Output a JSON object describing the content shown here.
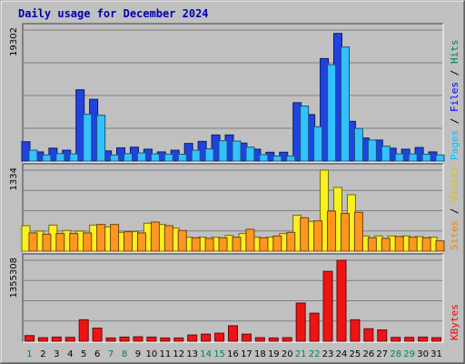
{
  "chart_data": {
    "title": "Daily usage for December 2024",
    "days": [
      "1",
      "2",
      "3",
      "4",
      "5",
      "6",
      "7",
      "8",
      "9",
      "10",
      "11",
      "12",
      "13",
      "14",
      "15",
      "16",
      "17",
      "18",
      "19",
      "20",
      "21",
      "22",
      "23",
      "24",
      "25",
      "26",
      "27",
      "28",
      "29",
      "30",
      "31"
    ],
    "weekend_days": [
      "1",
      "7",
      "8",
      "14",
      "15",
      "21",
      "22",
      "28",
      "29"
    ],
    "panels": [
      {
        "name": "pages-files-hits",
        "ymax_label": "19302",
        "ymax": 19302,
        "legend": [
          {
            "text": "Hits",
            "color": "#00805c"
          },
          {
            "text": "Files",
            "color": "#0000ff"
          },
          {
            "text": "Pages",
            "color": "#00c0ff"
          }
        ],
        "series": [
          {
            "name": "Hits",
            "color": "#1f43e0",
            "values": [
              2850,
              1350,
              1900,
              1600,
              10500,
              9100,
              1500,
              1950,
              2050,
              1750,
              1350,
              1600,
              2600,
              2900,
              3850,
              3850,
              2650,
              1750,
              1300,
              1300,
              8600,
              6850,
              15100,
              18800,
              5850,
              3400,
              3100,
              1900,
              1750,
              2000,
              1350
            ]
          },
          {
            "name": "Files",
            "color": "#33c2ff",
            "values": [
              1600,
              900,
              1100,
              1050,
              6900,
              6750,
              900,
              1100,
              1200,
              1050,
              1000,
              1000,
              1600,
              1800,
              3000,
              2950,
              2050,
              950,
              750,
              750,
              8100,
              5050,
              14200,
              16800,
              4800,
              3100,
              2200,
              1050,
              1050,
              1000,
              900
            ]
          }
        ]
      },
      {
        "name": "visits-sites",
        "ymax_label": "1334",
        "ymax": 1334,
        "legend": [
          {
            "text": "Visits",
            "color": "#e0c000"
          },
          {
            "text": "Sites",
            "color": "#ff8000"
          }
        ],
        "series": [
          {
            "name": "Visits",
            "color": "#f8f020",
            "values": [
              420,
              330,
              430,
              340,
              330,
              430,
              400,
              310,
              320,
              460,
              440,
              380,
              230,
              230,
              230,
              260,
              290,
              230,
              230,
              290,
              590,
              490,
              1334,
              1050,
              930,
              250,
              250,
              250,
              250,
              240,
              230
            ]
          },
          {
            "name": "Sites",
            "color": "#ff9620",
            "values": [
              300,
              280,
              290,
              290,
              300,
              440,
              440,
              320,
              300,
              480,
              420,
              340,
              220,
              210,
              220,
              230,
              360,
              220,
              250,
              310,
              550,
              500,
              660,
              620,
              640,
              220,
              210,
              240,
              230,
              220,
              170
            ]
          }
        ]
      },
      {
        "name": "kbytes",
        "ymax_label": "1355308",
        "ymax": 1355308,
        "legend": [
          {
            "text": "KBytes",
            "color": "#ff0000"
          }
        ],
        "series": [
          {
            "name": "KBytes",
            "color": "#ef1414",
            "values": [
              95000,
              60000,
              70000,
              65000,
              360000,
              220000,
              55000,
              70000,
              75000,
              70000,
              55000,
              55000,
              105000,
              120000,
              135000,
              260000,
              120000,
              60000,
              55000,
              60000,
              640000,
              470000,
              1170000,
              1355308,
              360000,
              210000,
              190000,
              65000,
              65000,
              70000,
              60000
            ]
          }
        ]
      }
    ]
  }
}
